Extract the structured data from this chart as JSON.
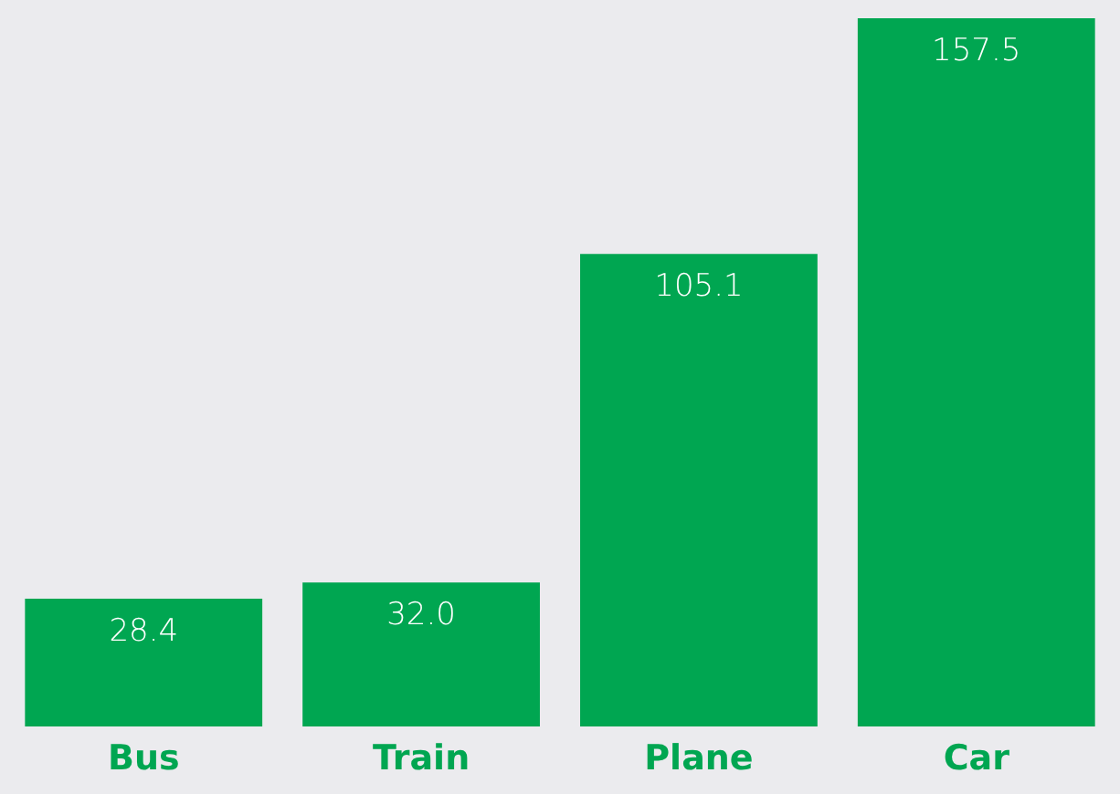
{
  "chart_data": {
    "type": "bar",
    "categories": [
      "Bus",
      "Train",
      "Plane",
      "Car"
    ],
    "values": [
      28.4,
      32.0,
      105.1,
      157.5
    ],
    "value_labels": [
      "28.4",
      "32.0",
      "105.1",
      "157.5"
    ],
    "color": "#00a651",
    "grid": false
  }
}
